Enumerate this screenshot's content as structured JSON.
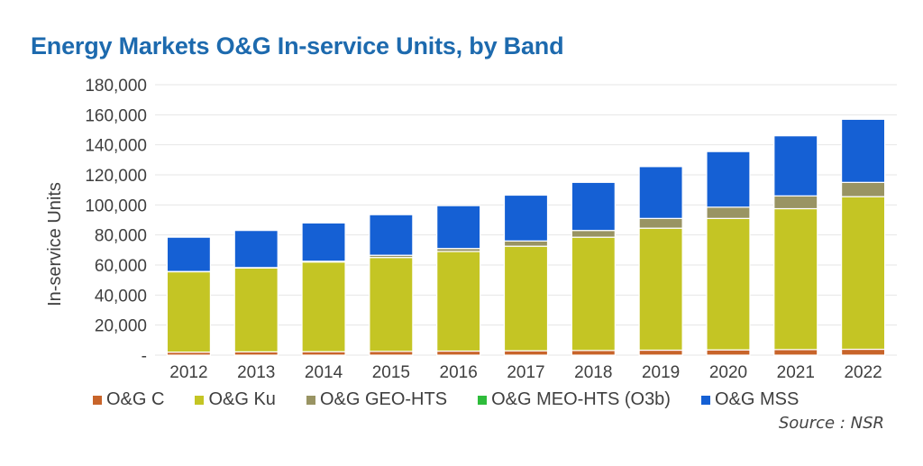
{
  "chart_data": {
    "type": "bar",
    "stacked": true,
    "title": "Energy Markets O&G In-service Units, by Band",
    "xlabel": "",
    "ylabel": "In-service Units",
    "ylim": [
      0,
      180000
    ],
    "yticks": [
      0,
      20000,
      40000,
      60000,
      80000,
      100000,
      120000,
      140000,
      160000,
      180000
    ],
    "ytick_labels": [
      "-",
      "20,000",
      "40,000",
      "60,000",
      "80,000",
      "100,000",
      "120,000",
      "140,000",
      "160,000",
      "180,000"
    ],
    "grid": true,
    "categories": [
      "2012",
      "2013",
      "2014",
      "2015",
      "2016",
      "2017",
      "2018",
      "2019",
      "2020",
      "2021",
      "2022"
    ],
    "series": [
      {
        "name": "O&G C",
        "color": "#c8642a",
        "values": [
          2000,
          2200,
          2300,
          2500,
          2700,
          2900,
          3100,
          3300,
          3500,
          3700,
          3900
        ]
      },
      {
        "name": "O&G Ku",
        "color": "#c4c524",
        "values": [
          53500,
          55800,
          59700,
          62500,
          66300,
          69600,
          75400,
          81200,
          87500,
          93800,
          101600
        ]
      },
      {
        "name": "O&G GEO-HTS",
        "color": "#999463",
        "values": [
          200,
          300,
          500,
          1500,
          2000,
          3500,
          4500,
          6500,
          7500,
          8500,
          9500
        ]
      },
      {
        "name": "O&G MEO-HTS (O3b)",
        "color": "#2ebc3b",
        "values": [
          0,
          0,
          0,
          0,
          0,
          0,
          0,
          0,
          0,
          0,
          0
        ]
      },
      {
        "name": "O&G MSS",
        "color": "#1560d4",
        "values": [
          22800,
          24700,
          25500,
          27000,
          28500,
          30500,
          32000,
          34500,
          37000,
          40000,
          42000
        ]
      }
    ],
    "legend_position": "bottom",
    "source": "Source : NSR"
  }
}
